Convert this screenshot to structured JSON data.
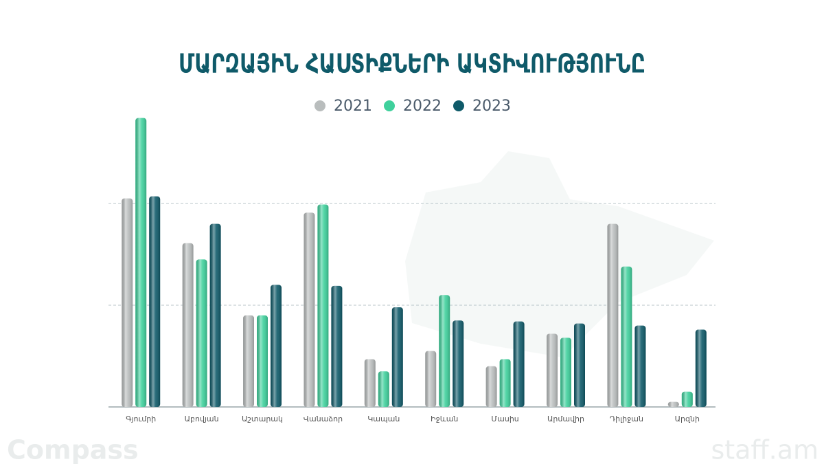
{
  "chart_data": {
    "type": "bar",
    "title": "ՄԱՐԶԱՅԻՆ ՀԱՍՏԻՔՆԵՐԻ ԱԿՏԻՎՈՒԹՅՈՒՆԸ",
    "categories": [
      "Գյումրի",
      "Աբովյան",
      "Աշտարակ",
      "Վանաձոր",
      "Կապան",
      "Իջևան",
      "Մասիս",
      "Արմավիր",
      "Դիլիջան",
      "Արզնի"
    ],
    "series": [
      {
        "name": "2021",
        "color": "#b9bdbd",
        "values": [
          205,
          161,
          90,
          191,
          47,
          55,
          40,
          72,
          180,
          5
        ]
      },
      {
        "name": "2022",
        "color": "#3fd09c",
        "values": [
          284,
          145,
          90,
          199,
          35,
          110,
          47,
          68,
          138,
          15
        ]
      },
      {
        "name": "2023",
        "color": "#0f5a69",
        "values": [
          207,
          180,
          120,
          119,
          98,
          85,
          84,
          82,
          80,
          76
        ]
      }
    ],
    "ylim": [
      0,
      300
    ],
    "gridlines": [
      100,
      200
    ],
    "grid": true,
    "legend": "top",
    "watermarks": [
      "Compass",
      "staff.am"
    ]
  }
}
